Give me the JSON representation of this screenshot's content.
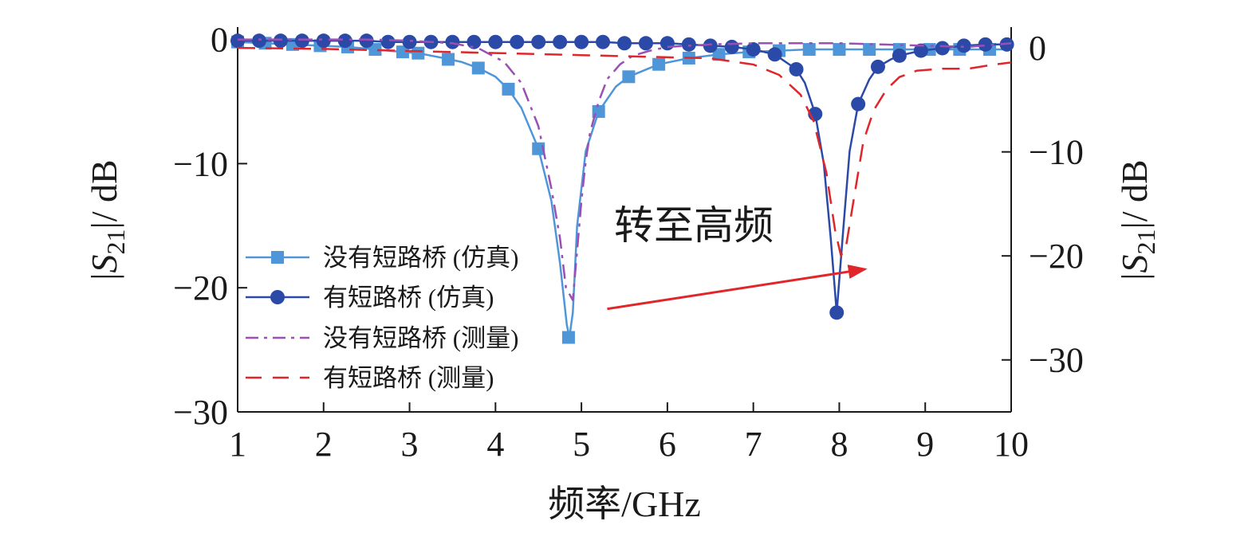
{
  "chart_data": {
    "type": "line",
    "xlabel": "频率/GHz",
    "ylabel_left": {
      "prefix": "|",
      "S": "S",
      "sub": "21",
      "suffix": "|/ dB"
    },
    "ylabel_right": {
      "prefix": "|",
      "S": "S",
      "sub": "21",
      "suffix": "|/ dB"
    },
    "xlim": [
      1,
      10
    ],
    "ylim_left": [
      -30,
      1
    ],
    "ylim_right": [
      -35,
      2
    ],
    "xticks": [
      1,
      2,
      3,
      4,
      5,
      6,
      7,
      8,
      9,
      10
    ],
    "xtick_labels": [
      "1",
      "2",
      "3",
      "4",
      "5",
      "6",
      "7",
      "8",
      "9",
      "10"
    ],
    "yticks_left": [
      0,
      -10,
      -20,
      -30
    ],
    "ytick_labels_left": [
      "0",
      "−10",
      "−20",
      "−30"
    ],
    "yticks_right": [
      0,
      -10,
      -20,
      -30
    ],
    "ytick_labels_right": [
      "0",
      "−10",
      "−20",
      "−30"
    ],
    "annotation": {
      "text": "转至高频",
      "arrow_from": [
        5.3,
        -21.7
      ],
      "arrow_to": [
        8.3,
        -18.5
      ]
    },
    "legend_position": "center-left",
    "series": [
      {
        "name": "没有短路桥 (仿真)",
        "axis": "left",
        "color": "#4f96d8",
        "line": "solid",
        "marker": "square",
        "x": [
          1,
          1.32,
          1.64,
          1.96,
          2.28,
          2.6,
          2.92,
          3.1,
          3.4,
          3.6,
          3.8,
          4.0,
          4.15,
          4.3,
          4.5,
          4.65,
          4.75,
          4.83,
          4.86,
          4.9,
          4.95,
          5.05,
          5.2,
          5.4,
          5.55,
          5.9,
          6.25,
          6.6,
          6.95,
          7.3,
          7.65,
          8.0,
          8.35,
          8.7,
          9.05,
          9.4,
          9.75,
          10
        ],
        "y": [
          -0.2,
          -0.3,
          -0.4,
          -0.5,
          -0.6,
          -0.8,
          -1.0,
          -1.1,
          -1.5,
          -1.8,
          -2.3,
          -3.0,
          -4.0,
          -5.5,
          -8.8,
          -13.0,
          -18.0,
          -23.0,
          -24.0,
          -22.0,
          -15.0,
          -9.0,
          -5.8,
          -3.8,
          -3.0,
          -2.0,
          -1.5,
          -1.2,
          -1.0,
          -0.9,
          -0.8,
          -0.8,
          -0.8,
          -0.8,
          -0.8,
          -0.8,
          -0.8,
          -0.8
        ],
        "marker_x": [
          1,
          1.32,
          1.64,
          1.96,
          2.28,
          2.6,
          2.92,
          3.1,
          3.45,
          3.8,
          4.15,
          4.5,
          4.85,
          5.2,
          5.55,
          5.9,
          6.25,
          6.6,
          6.95,
          7.3,
          7.65,
          8.0,
          8.35,
          8.7,
          9.05,
          9.4,
          9.75
        ],
        "marker_y": [
          -0.2,
          -0.3,
          -0.4,
          -0.5,
          -0.6,
          -0.8,
          -1.0,
          -1.1,
          -1.6,
          -2.3,
          -4.0,
          -8.8,
          -24.0,
          -5.8,
          -3.0,
          -2.0,
          -1.5,
          -1.2,
          -1.0,
          -0.9,
          -0.8,
          -0.8,
          -0.8,
          -0.8,
          -0.8,
          -0.8,
          -0.8
        ]
      },
      {
        "name": "有短路桥 (仿真)",
        "axis": "left",
        "color": "#2b4aa8",
        "line": "solid",
        "marker": "circle",
        "x": [
          1,
          1.25,
          1.5,
          1.75,
          2.0,
          2.25,
          2.5,
          2.75,
          3.0,
          3.25,
          3.5,
          3.75,
          4.0,
          4.25,
          4.5,
          4.75,
          5.0,
          5.25,
          5.5,
          5.75,
          6.0,
          6.25,
          6.5,
          6.75,
          7.0,
          7.25,
          7.5,
          7.6,
          7.72,
          7.82,
          7.9,
          7.97,
          8.05,
          8.12,
          8.22,
          8.35,
          8.45,
          8.6,
          8.7,
          8.95,
          9.2,
          9.45,
          9.7,
          9.95
        ],
        "y": [
          -0.1,
          -0.1,
          -0.1,
          -0.1,
          -0.1,
          -0.1,
          -0.1,
          -0.2,
          -0.2,
          -0.2,
          -0.2,
          -0.2,
          -0.2,
          -0.2,
          -0.2,
          -0.2,
          -0.2,
          -0.2,
          -0.3,
          -0.3,
          -0.3,
          -0.4,
          -0.5,
          -0.6,
          -0.8,
          -1.2,
          -2.4,
          -3.5,
          -6.0,
          -10.0,
          -16.0,
          -22.0,
          -15.0,
          -9.0,
          -5.2,
          -3.2,
          -2.2,
          -1.6,
          -1.3,
          -0.9,
          -0.7,
          -0.5,
          -0.4,
          -0.4
        ],
        "marker_x": [
          1,
          1.25,
          1.5,
          1.75,
          2.0,
          2.25,
          2.5,
          2.75,
          3.0,
          3.25,
          3.5,
          3.75,
          4.0,
          4.25,
          4.5,
          4.75,
          5.0,
          5.25,
          5.5,
          5.75,
          6.0,
          6.25,
          6.5,
          6.75,
          7.0,
          7.25,
          7.5,
          7.72,
          7.97,
          8.22,
          8.45,
          8.7,
          8.95,
          9.2,
          9.45,
          9.7,
          9.95
        ],
        "marker_y": [
          -0.1,
          -0.1,
          -0.1,
          -0.1,
          -0.1,
          -0.1,
          -0.1,
          -0.2,
          -0.2,
          -0.2,
          -0.2,
          -0.2,
          -0.2,
          -0.2,
          -0.2,
          -0.2,
          -0.2,
          -0.2,
          -0.3,
          -0.3,
          -0.3,
          -0.4,
          -0.5,
          -0.6,
          -0.8,
          -1.2,
          -2.4,
          -6.0,
          -22.0,
          -5.2,
          -2.2,
          -1.3,
          -0.9,
          -0.7,
          -0.5,
          -0.4,
          -0.4
        ]
      },
      {
        "name": "没有短路桥 (测量)",
        "axis": "left",
        "color": "#9b4fb5",
        "line": "dashdot",
        "marker": "none",
        "x": [
          1,
          1.5,
          2.0,
          2.5,
          3.0,
          3.5,
          3.8,
          4.1,
          4.3,
          4.5,
          4.65,
          4.75,
          4.82,
          4.9,
          4.95,
          5.0,
          5.05,
          5.1,
          5.2,
          5.3,
          5.45,
          5.6,
          5.8,
          6.0,
          6.5,
          7.0,
          7.5,
          8.0,
          8.5,
          9.0,
          9.5,
          10
        ],
        "y": [
          0.0,
          0.0,
          0.0,
          0.0,
          -0.1,
          -0.3,
          -0.7,
          -1.8,
          -3.5,
          -7.0,
          -12.0,
          -16.0,
          -20.0,
          -21.0,
          -17.0,
          -13.0,
          -9.8,
          -7.5,
          -5.0,
          -3.2,
          -2.0,
          -1.3,
          -0.9,
          -0.6,
          -0.4,
          -0.3,
          -0.3,
          -0.3,
          -0.4,
          -0.5,
          -0.6,
          -0.3
        ]
      },
      {
        "name": "有短路桥 (测量)",
        "axis": "right",
        "color": "#e0262b",
        "line": "dashed",
        "marker": "none",
        "x": [
          1,
          2.0,
          3.0,
          4.0,
          5.0,
          6.0,
          6.5,
          7.0,
          7.3,
          7.55,
          7.7,
          7.85,
          7.95,
          8.02,
          8.08,
          8.18,
          8.28,
          8.4,
          8.55,
          8.7,
          8.9,
          9.2,
          9.5,
          9.8,
          10
        ],
        "y": [
          0.0,
          -0.1,
          -0.3,
          -0.5,
          -0.7,
          -0.9,
          -1.0,
          -1.6,
          -2.6,
          -4.5,
          -7.0,
          -12.0,
          -17.5,
          -20.0,
          -19.0,
          -14.0,
          -9.0,
          -6.0,
          -4.0,
          -2.8,
          -2.2,
          -2.0,
          -2.0,
          -1.6,
          -1.4
        ]
      }
    ]
  }
}
